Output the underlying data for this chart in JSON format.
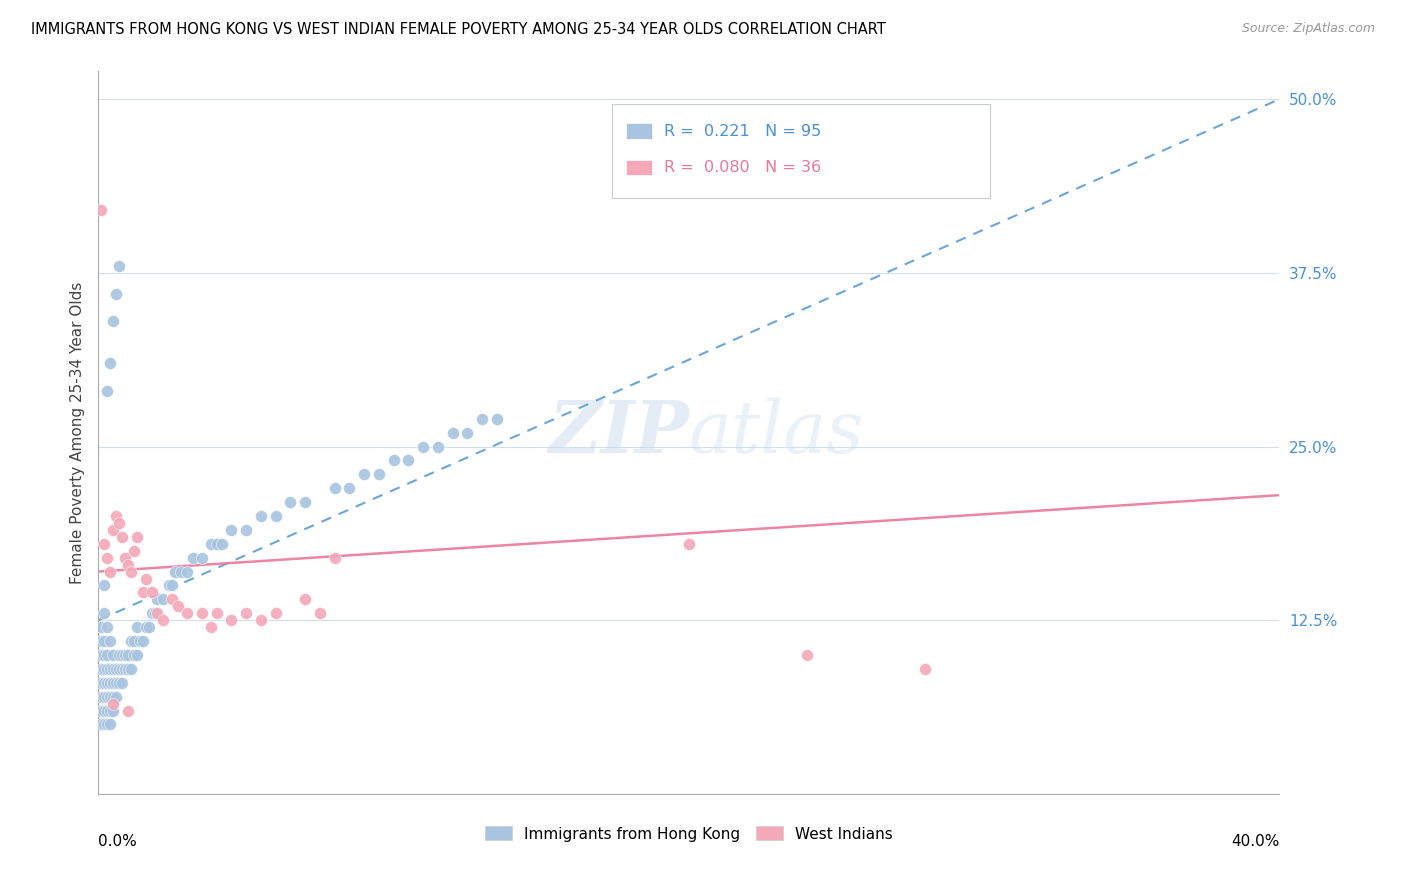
{
  "title": "IMMIGRANTS FROM HONG KONG VS WEST INDIAN FEMALE POVERTY AMONG 25-34 YEAR OLDS CORRELATION CHART",
  "source": "Source: ZipAtlas.com",
  "ylabel": "Female Poverty Among 25-34 Year Olds",
  "legend_label_hk": "Immigrants from Hong Kong",
  "legend_label_wi": "West Indians",
  "xmin": 0.0,
  "xmax": 0.4,
  "ymin": 0.0,
  "ymax": 0.52,
  "hk_color": "#a8c4e0",
  "wi_color": "#f4a8b8",
  "hk_line_color": "#5b9bd5",
  "wi_line_color": "#e8799a",
  "hk_R": 0.221,
  "hk_N": 95,
  "wi_R": 0.08,
  "wi_N": 36,
  "hk_line_x0": 0.0,
  "hk_line_y0": 0.125,
  "hk_line_x1": 0.4,
  "hk_line_y1": 0.5,
  "wi_line_x0": 0.0,
  "wi_line_y0": 0.16,
  "wi_line_x1": 0.4,
  "wi_line_y1": 0.215,
  "hk_scatter_x": [
    0.001,
    0.001,
    0.001,
    0.001,
    0.001,
    0.001,
    0.001,
    0.001,
    0.002,
    0.002,
    0.002,
    0.002,
    0.002,
    0.002,
    0.002,
    0.002,
    0.002,
    0.003,
    0.003,
    0.003,
    0.003,
    0.003,
    0.003,
    0.003,
    0.004,
    0.004,
    0.004,
    0.004,
    0.004,
    0.004,
    0.005,
    0.005,
    0.005,
    0.005,
    0.005,
    0.006,
    0.006,
    0.006,
    0.007,
    0.007,
    0.007,
    0.008,
    0.008,
    0.008,
    0.009,
    0.009,
    0.01,
    0.01,
    0.011,
    0.011,
    0.012,
    0.012,
    0.013,
    0.013,
    0.014,
    0.015,
    0.016,
    0.017,
    0.018,
    0.019,
    0.02,
    0.022,
    0.024,
    0.025,
    0.026,
    0.028,
    0.03,
    0.032,
    0.035,
    0.038,
    0.04,
    0.042,
    0.045,
    0.05,
    0.055,
    0.06,
    0.065,
    0.07,
    0.08,
    0.085,
    0.09,
    0.095,
    0.1,
    0.105,
    0.11,
    0.115,
    0.12,
    0.125,
    0.13,
    0.135,
    0.003,
    0.004,
    0.005,
    0.006,
    0.007
  ],
  "hk_scatter_y": [
    0.05,
    0.06,
    0.07,
    0.08,
    0.09,
    0.1,
    0.11,
    0.12,
    0.05,
    0.06,
    0.07,
    0.08,
    0.09,
    0.1,
    0.11,
    0.13,
    0.15,
    0.05,
    0.06,
    0.07,
    0.08,
    0.09,
    0.1,
    0.12,
    0.05,
    0.06,
    0.07,
    0.08,
    0.09,
    0.11,
    0.06,
    0.07,
    0.08,
    0.09,
    0.1,
    0.07,
    0.08,
    0.09,
    0.08,
    0.09,
    0.1,
    0.08,
    0.09,
    0.1,
    0.09,
    0.1,
    0.09,
    0.1,
    0.09,
    0.11,
    0.1,
    0.11,
    0.1,
    0.12,
    0.11,
    0.11,
    0.12,
    0.12,
    0.13,
    0.13,
    0.14,
    0.14,
    0.15,
    0.15,
    0.16,
    0.16,
    0.16,
    0.17,
    0.17,
    0.18,
    0.18,
    0.18,
    0.19,
    0.19,
    0.2,
    0.2,
    0.21,
    0.21,
    0.22,
    0.22,
    0.23,
    0.23,
    0.24,
    0.24,
    0.25,
    0.25,
    0.26,
    0.26,
    0.27,
    0.27,
    0.29,
    0.31,
    0.34,
    0.36,
    0.38
  ],
  "wi_scatter_x": [
    0.001,
    0.002,
    0.003,
    0.004,
    0.005,
    0.006,
    0.007,
    0.008,
    0.009,
    0.01,
    0.011,
    0.012,
    0.013,
    0.015,
    0.016,
    0.018,
    0.02,
    0.022,
    0.025,
    0.027,
    0.03,
    0.035,
    0.038,
    0.04,
    0.045,
    0.05,
    0.055,
    0.06,
    0.07,
    0.075,
    0.08,
    0.2,
    0.24,
    0.28,
    0.005,
    0.01
  ],
  "wi_scatter_y": [
    0.42,
    0.18,
    0.17,
    0.16,
    0.19,
    0.2,
    0.195,
    0.185,
    0.17,
    0.165,
    0.16,
    0.175,
    0.185,
    0.145,
    0.155,
    0.145,
    0.13,
    0.125,
    0.14,
    0.135,
    0.13,
    0.13,
    0.12,
    0.13,
    0.125,
    0.13,
    0.125,
    0.13,
    0.14,
    0.13,
    0.17,
    0.18,
    0.1,
    0.09,
    0.065,
    0.06
  ]
}
